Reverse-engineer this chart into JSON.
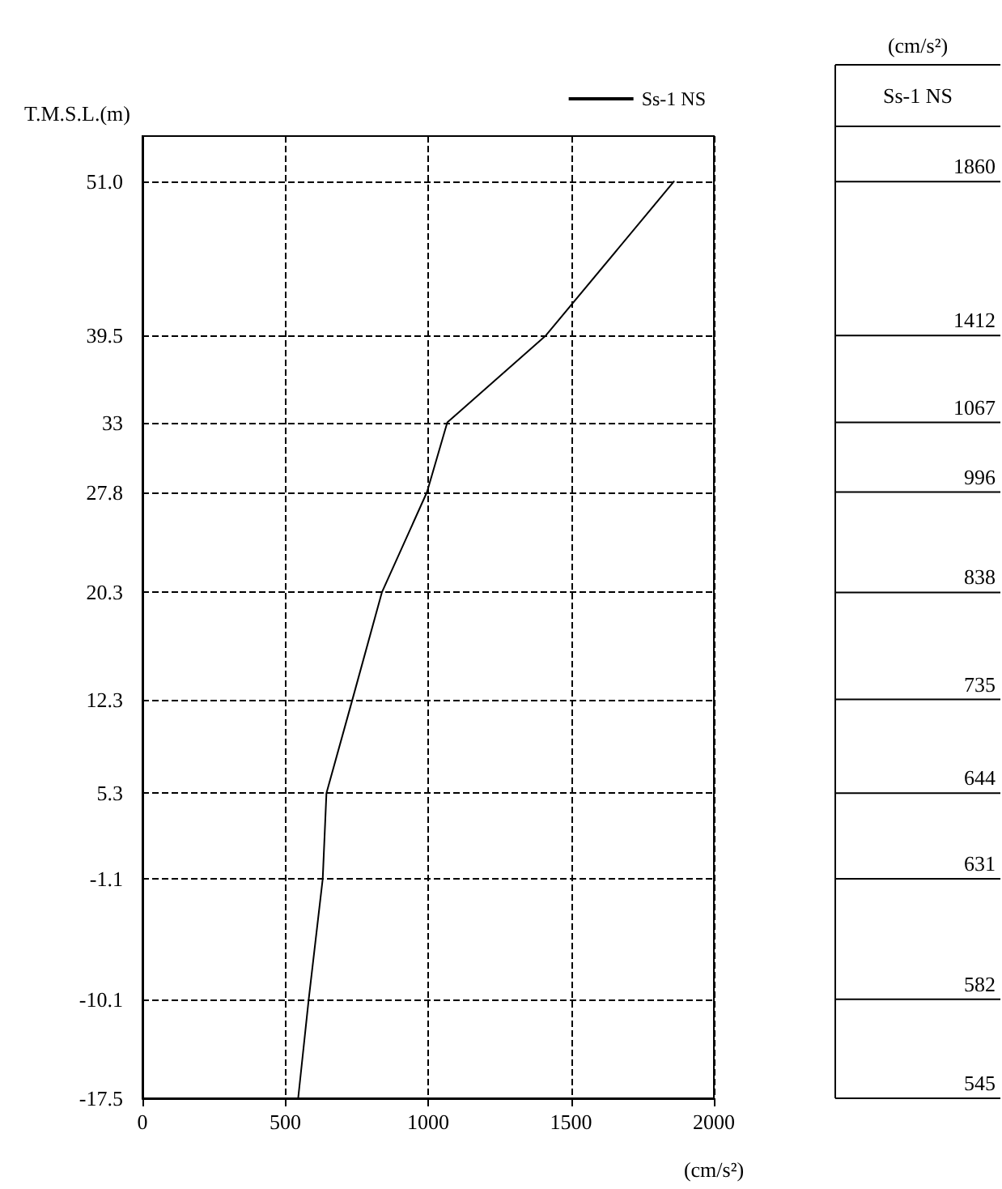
{
  "chart_data": {
    "type": "line",
    "ylabel": "T.M.S.L.(m)",
    "xlabel": "(cm/s²)",
    "x": [
      1860,
      1412,
      1067,
      996,
      838,
      735,
      644,
      631,
      582,
      545
    ],
    "series": [
      {
        "name": "Ss-1 NS",
        "color": "#000000",
        "values": [
          51.0,
          39.5,
          33.0,
          27.8,
          20.3,
          12.3,
          5.3,
          -1.1,
          -10.1,
          -17.5
        ]
      }
    ],
    "xlim": [
      0,
      2000
    ],
    "xticks": [
      0,
      500,
      1000,
      1500,
      2000
    ],
    "ylim": [
      -17.5,
      54.4
    ],
    "yticks": [
      {
        "value": 51,
        "label": "51.0"
      },
      39.5,
      33,
      27.8,
      20.3,
      12.3,
      5.3,
      -1.1,
      -10.1,
      -17.5
    ],
    "grid": true,
    "legend": "top right",
    "marker": "none",
    "line_style": "solid",
    "annotations": [
      "(cm/s²)",
      "Ss-1 NS",
      "1860",
      "1412",
      "1067",
      "996",
      "838",
      "735",
      "644",
      "631",
      "582",
      "545"
    ]
  }
}
